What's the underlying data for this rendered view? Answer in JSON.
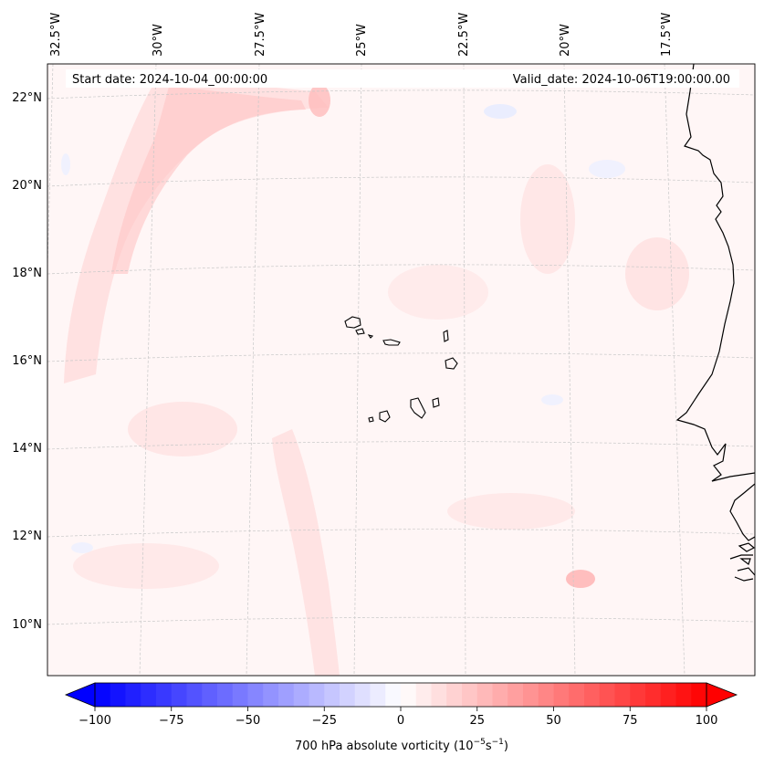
{
  "map": {
    "start_date_text": "Start date: 2024-10-04_00:00:00",
    "valid_date_text": "Valid_date: 2024-10-06T19:00:00.00",
    "lon_labels": [
      "32.5°W",
      "30°W",
      "27.5°W",
      "25°W",
      "22.5°W",
      "20°W",
      "17.5°W"
    ],
    "lat_labels": [
      "22°N",
      "20°N",
      "18°N",
      "16°N",
      "14°N",
      "12°N",
      "10°N"
    ],
    "field": "700 hPa absolute vorticity"
  },
  "colorbar": {
    "ticks": [
      "−100",
      "−75",
      "−50",
      "−25",
      "0",
      "25",
      "50",
      "75",
      "100"
    ],
    "tick_values": [
      -100,
      -75,
      -50,
      -25,
      0,
      25,
      50,
      75,
      100
    ],
    "range": [
      -100,
      100
    ],
    "label_main": "700 hPa absolute vorticity (10",
    "label_exp1": "−5",
    "label_mid": "s",
    "label_exp2": "−1",
    "label_end": ")",
    "color_min": "#0000ff",
    "color_mid": "#ffffff",
    "color_max": "#ff0000"
  },
  "colors": {
    "background_tint": "#fff6f6",
    "coast": "#000000",
    "grid": "#c8c8c8"
  }
}
